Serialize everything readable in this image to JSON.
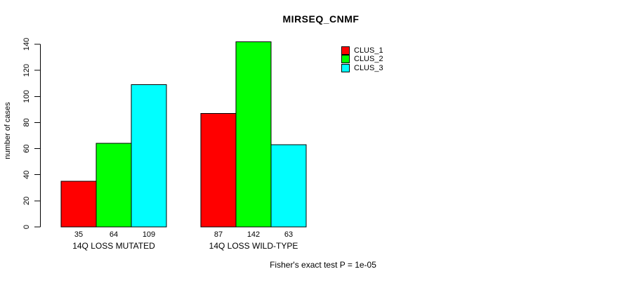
{
  "title": "MIRSEQ_CNMF",
  "footer": "Fisher's exact test P = 1e-05",
  "colors": {
    "background": "#FFFFFF",
    "axis": "#000000",
    "text": "#000000",
    "clus_1": "#FF0000",
    "clus_2": "#00FF00",
    "clus_3": "#00FFFF"
  },
  "chart_data": {
    "type": "bar",
    "title": "MIRSEQ_CNMF",
    "xlabel": "",
    "ylabel": "number of cases",
    "ylim": [
      0,
      140
    ],
    "yticks": [
      0,
      20,
      40,
      60,
      80,
      100,
      120,
      140
    ],
    "grid": "off",
    "legend_position": "top-right",
    "categories": [
      "14Q LOSS MUTATED",
      "14Q LOSS WILD-TYPE"
    ],
    "series": [
      {
        "name": "CLUS_1",
        "color": "#FF0000",
        "values": [
          35,
          87
        ]
      },
      {
        "name": "CLUS_2",
        "color": "#00FF00",
        "values": [
          64,
          142
        ]
      },
      {
        "name": "CLUS_3",
        "color": "#00FFFF",
        "values": [
          109,
          63
        ]
      }
    ],
    "bar_value_labels": [
      [
        35,
        64,
        109
      ],
      [
        87,
        142,
        63
      ]
    ],
    "annotation": "Fisher's exact test P = 1e-05"
  }
}
